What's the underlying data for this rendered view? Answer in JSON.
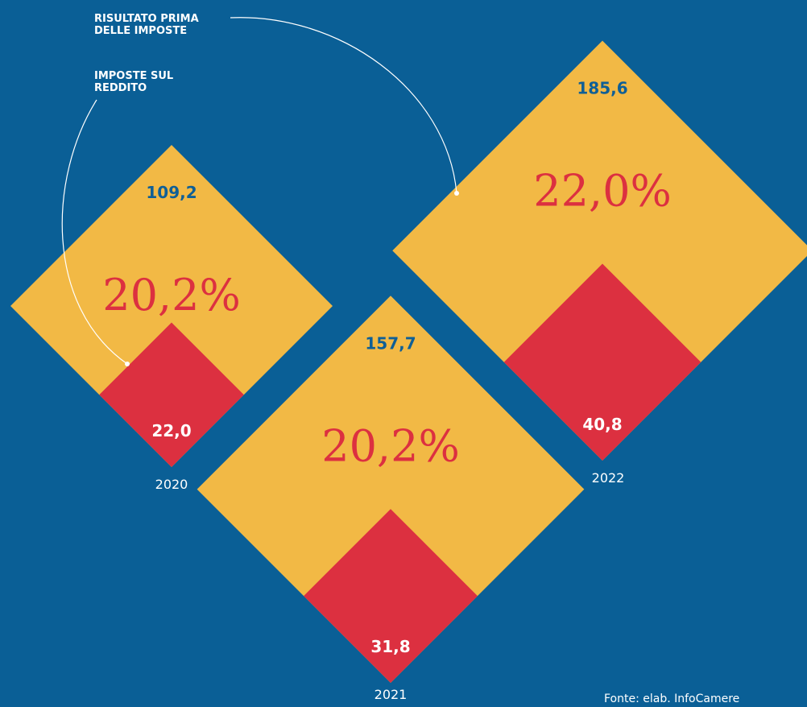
{
  "chart_data": {
    "type": "diamond",
    "categories": [
      "2020",
      "2021",
      "2022"
    ],
    "series": [
      {
        "name": "RISULTATO PRIMA DELLE IMPOSTE",
        "color": "#f2b945",
        "values": [
          109.2,
          157.7,
          185.6
        ],
        "value_labels": [
          "109,2",
          "157,7",
          "185,6"
        ]
      },
      {
        "name": "IMPOSTE SUL REDDITO",
        "color": "#dc3040",
        "values": [
          22.0,
          31.8,
          40.8
        ],
        "value_labels": [
          "22,0",
          "31,8",
          "40,8"
        ]
      }
    ],
    "rates": {
      "values": [
        20.2,
        20.2,
        22.0
      ],
      "value_labels": [
        "20,2%",
        "20,2%",
        "22,0%"
      ]
    },
    "source": "Fonte: elab. InfoCamere"
  }
}
